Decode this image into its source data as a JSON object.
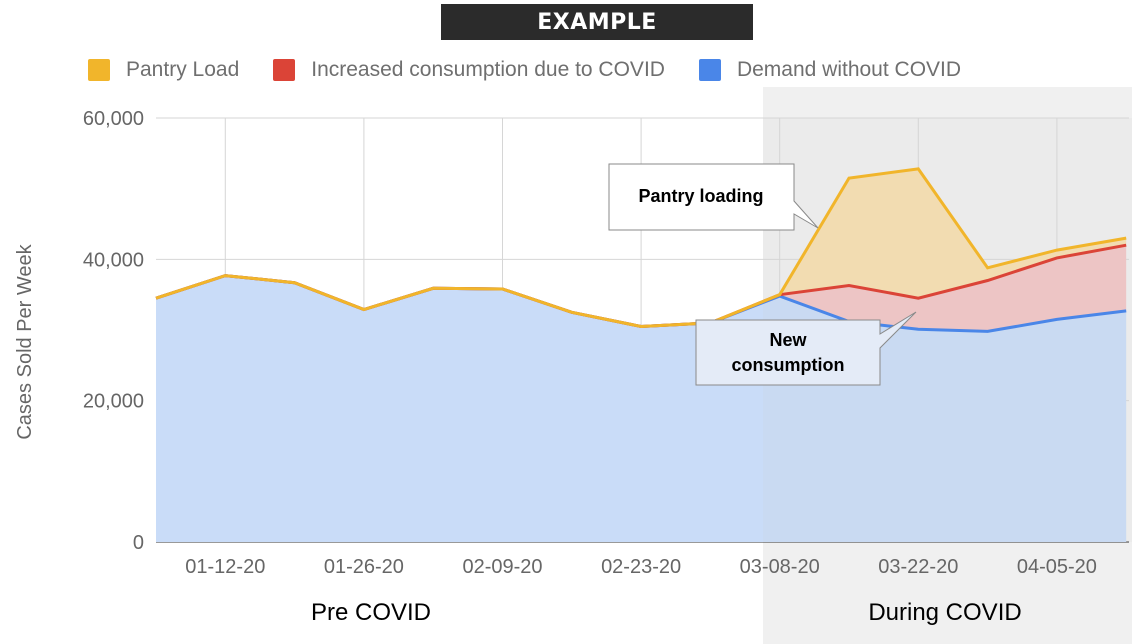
{
  "banner": "EXAMPLE",
  "colors": {
    "pantry": "#f1b52b",
    "consumption": "#db4437",
    "demand": "#4a86e8",
    "demand_fill": "#c9dcf8",
    "consumption_fill": "#f2c4c4",
    "pantry_fill": "#f7dfae",
    "covid_shade": "#f0f0f0",
    "grid": "#d6d6d6"
  },
  "chart_data": {
    "type": "area",
    "title": "",
    "ylabel": "Cases Sold Per Week",
    "xlabel": "",
    "ylim": [
      0,
      60000
    ],
    "yticks": [
      "0",
      "20,000",
      "40,000",
      "60,000"
    ],
    "x": [
      "01-05-20",
      "01-12-20",
      "01-19-20",
      "01-26-20",
      "02-02-20",
      "02-09-20",
      "02-16-20",
      "02-23-20",
      "03-01-20",
      "03-08-20",
      "03-15-20",
      "03-22-20",
      "03-29-20",
      "04-05-20",
      "04-12-20"
    ],
    "x_tick_labels": [
      "01-12-20",
      "01-26-20",
      "02-09-20",
      "02-23-20",
      "03-08-20",
      "03-22-20",
      "04-05-20"
    ],
    "grid": true,
    "legend_position": "top",
    "series": [
      {
        "name": "Pantry Load",
        "values": [
          34500,
          37700,
          36700,
          32900,
          35900,
          35800,
          32500,
          30500,
          31000,
          35000,
          51500,
          52800,
          38800,
          41300,
          43000
        ]
      },
      {
        "name": "Increased consumption due to COVID",
        "values": [
          34500,
          37700,
          36700,
          32900,
          35900,
          35800,
          32500,
          30500,
          31000,
          35000,
          36300,
          34500,
          37000,
          40200,
          42000
        ]
      },
      {
        "name": "Demand without COVID",
        "values": [
          34500,
          37700,
          36700,
          32900,
          35900,
          35800,
          32500,
          30500,
          31000,
          34800,
          31200,
          30100,
          29800,
          31500,
          32700
        ]
      }
    ],
    "annotations": [
      "Pantry loading",
      "New consumption"
    ],
    "periods": [
      "Pre COVID",
      "During COVID"
    ]
  }
}
